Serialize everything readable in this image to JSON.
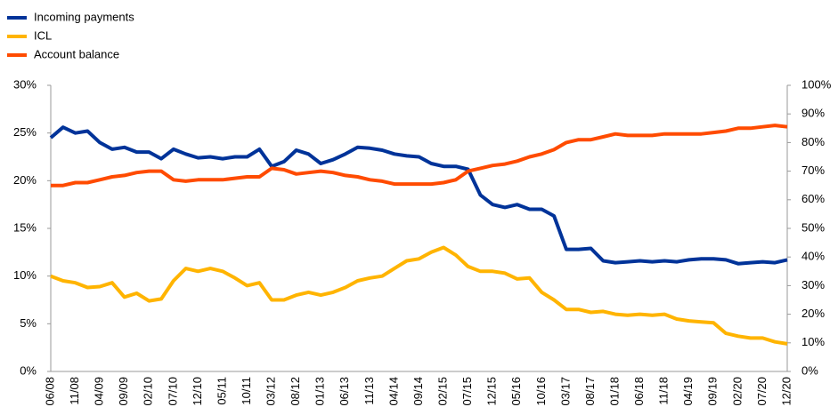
{
  "chart_data": {
    "type": "line",
    "categories": [
      "06/08",
      null,
      "11/08",
      null,
      "04/09",
      null,
      "09/09",
      null,
      "02/10",
      null,
      "07/10",
      null,
      "12/10",
      null,
      "05/11",
      null,
      "10/11",
      null,
      "03/12",
      null,
      "08/12",
      null,
      "01/13",
      null,
      "06/13",
      null,
      "11/13",
      null,
      "04/14",
      null,
      "09/14",
      null,
      "02/15",
      null,
      "07/15",
      null,
      "12/15",
      null,
      "05/16",
      null,
      "10/16",
      null,
      "03/17",
      null,
      "08/17",
      null,
      "01/18",
      null,
      "06/18",
      null,
      "11/18",
      null,
      "04/19",
      null,
      "09/19",
      null,
      "02/20",
      null,
      "07/20",
      null,
      "12/20"
    ],
    "series": [
      {
        "name": "Incoming payments",
        "color": "#003399",
        "values": [
          24.5,
          25.6,
          25.0,
          25.2,
          24.0,
          23.3,
          23.5,
          23.0,
          23.0,
          22.3,
          23.3,
          22.8,
          22.4,
          22.5,
          22.3,
          22.5,
          22.5,
          23.3,
          21.5,
          22.0,
          23.2,
          22.8,
          21.8,
          22.2,
          22.8,
          23.5,
          23.4,
          23.2,
          22.8,
          22.6,
          22.5,
          21.8,
          21.5,
          21.5,
          21.2,
          18.5,
          17.5,
          17.2,
          17.5,
          17.0,
          17.0,
          16.3,
          12.8,
          12.8,
          12.9,
          11.6,
          11.4,
          11.5,
          11.6,
          11.5,
          11.6,
          11.5,
          11.7,
          11.8,
          11.8,
          11.7,
          11.3,
          11.4,
          11.5,
          11.4,
          11.7
        ]
      },
      {
        "name": "ICL",
        "color": "#ffb400",
        "values": [
          10.0,
          9.5,
          9.3,
          8.8,
          8.9,
          9.3,
          7.8,
          8.2,
          7.4,
          7.6,
          9.5,
          10.8,
          10.5,
          10.8,
          10.5,
          9.8,
          9.0,
          9.3,
          7.5,
          7.5,
          8.0,
          8.3,
          8.0,
          8.3,
          8.8,
          9.5,
          9.8,
          10.0,
          10.8,
          11.6,
          11.8,
          12.5,
          13.0,
          12.2,
          11.0,
          10.5,
          10.5,
          10.3,
          9.7,
          9.8,
          8.3,
          7.5,
          6.5,
          6.5,
          6.2,
          6.3,
          6.0,
          5.9,
          6.0,
          5.9,
          6.0,
          5.5,
          5.3,
          5.2,
          5.1,
          4.0,
          3.7,
          3.5,
          3.5,
          3.1,
          2.9
        ]
      },
      {
        "name": "Account balance",
        "color": "#ff4b00",
        "axis": "y2",
        "values": [
          65,
          65,
          66,
          66,
          67,
          68,
          68.5,
          69.5,
          70,
          70,
          67,
          66.5,
          67,
          67,
          67,
          67.5,
          68,
          68,
          71,
          70.5,
          69,
          69.5,
          70,
          69.5,
          68.5,
          68,
          67,
          66.5,
          65.5,
          65.5,
          65.5,
          65.5,
          66,
          67,
          70,
          71,
          72,
          72.5,
          73.5,
          75,
          76,
          77.5,
          80,
          81,
          81,
          82,
          83,
          82.5,
          82.5,
          82.5,
          83,
          83,
          83,
          83,
          83.5,
          84,
          85,
          85,
          85.5,
          86,
          85.5
        ]
      }
    ],
    "ylim": [
      0,
      30
    ],
    "yticks": [
      {
        "value": 0,
        "label": "0%"
      },
      {
        "value": 5,
        "label": "5%"
      },
      {
        "value": 10,
        "label": "10%"
      },
      {
        "value": 15,
        "label": "15%"
      },
      {
        "value": 20,
        "label": "20%"
      },
      {
        "value": 25,
        "label": "25%"
      },
      {
        "value": 30,
        "label": "30%"
      }
    ],
    "y2lim": [
      0,
      100
    ],
    "y2ticks": [
      {
        "value": 0,
        "label": "0%"
      },
      {
        "value": 10,
        "label": "10%"
      },
      {
        "value": 20,
        "label": "20%"
      },
      {
        "value": 30,
        "label": "30%"
      },
      {
        "value": 40,
        "label": "40%"
      },
      {
        "value": 50,
        "label": "50%"
      },
      {
        "value": 60,
        "label": "60%"
      },
      {
        "value": 70,
        "label": "70%"
      },
      {
        "value": 80,
        "label": "80%"
      },
      {
        "value": 90,
        "label": "90%"
      },
      {
        "value": 100,
        "label": "100%"
      }
    ],
    "legend": "top-left",
    "grid": false
  }
}
